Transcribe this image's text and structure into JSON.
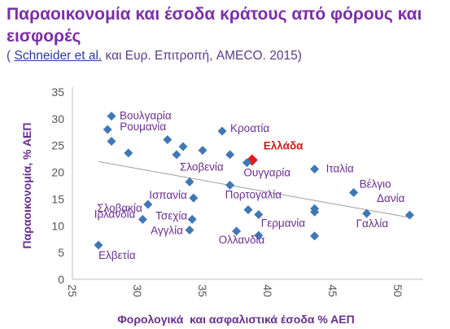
{
  "title": "Παραοικονομία και έσοδα κράτους από φόρους και εισφορές",
  "source": {
    "open": "(",
    "link_text": "Schneider et al.",
    "rest": " και Ευρ. Επιτροπή, AMECO. 2015)"
  },
  "colors": {
    "title": "#7b2fa8",
    "points": "#3f78b5",
    "highlight": "#dd1c1c",
    "labels": "#6a2e8f",
    "trend": "#9e9e9e"
  },
  "chart_data": {
    "type": "scatter",
    "xlabel": "Φορολογικά  και ασφαλιστικά έσοδα % ΑΕΠ",
    "ylabel": "Παραοικονομία, % ΑΕΠ",
    "xlim": [
      25,
      52
    ],
    "ylim": [
      0,
      35
    ],
    "xticks": [
      25,
      30,
      35,
      40,
      45,
      50
    ],
    "yticks": [
      0,
      5,
      10,
      15,
      20,
      25,
      30,
      35
    ],
    "grid": false,
    "trendline": {
      "x": [
        27,
        51
      ],
      "y": [
        22,
        11.5
      ]
    },
    "points": [
      {
        "label": "Βουλγαρία",
        "x": 28.0,
        "y": 30.5
      },
      {
        "label": "Ρουμανία",
        "x": 27.7,
        "y": 28.0
      },
      {
        "label": "",
        "x": 28.0,
        "y": 25.8
      },
      {
        "label": "",
        "x": 29.3,
        "y": 23.6
      },
      {
        "label": "",
        "x": 32.3,
        "y": 26.1
      },
      {
        "label": "",
        "x": 33.0,
        "y": 23.3
      },
      {
        "label": "",
        "x": 33.5,
        "y": 24.8
      },
      {
        "label": "",
        "x": 35.0,
        "y": 24.1
      },
      {
        "label": "Κροατία",
        "x": 36.5,
        "y": 27.7
      },
      {
        "label": "",
        "x": 37.1,
        "y": 23.3
      },
      {
        "label": "Ελλάδα",
        "x": 38.8,
        "y": 22.3,
        "highlight": true
      },
      {
        "label": "Ουγγαρία",
        "x": 38.4,
        "y": 21.8
      },
      {
        "label": "Ιταλία",
        "x": 43.6,
        "y": 20.6
      },
      {
        "label": "Σλοβενία",
        "x": 34.0,
        "y": 18.2
      },
      {
        "label": "Πορτογαλία",
        "x": 37.1,
        "y": 17.6
      },
      {
        "label": "Βέλγιο",
        "x": 46.6,
        "y": 16.2
      },
      {
        "label": "Δανία",
        "x": 50.9,
        "y": 12.0
      },
      {
        "label": "Ισπανία",
        "x": 34.3,
        "y": 15.2
      },
      {
        "label": "Σλοβακία",
        "x": 30.8,
        "y": 14.0
      },
      {
        "label": "Τσεχία",
        "x": 34.2,
        "y": 11.2
      },
      {
        "label": "Ιρλανδία",
        "x": 30.4,
        "y": 11.2
      },
      {
        "label": "Αγγλία",
        "x": 34.0,
        "y": 9.2
      },
      {
        "label": "",
        "x": 38.5,
        "y": 13.0
      },
      {
        "label": "Γερμανία",
        "x": 39.3,
        "y": 12.1
      },
      {
        "label": "",
        "x": 43.6,
        "y": 12.6
      },
      {
        "label": "",
        "x": 43.6,
        "y": 13.2
      },
      {
        "label": "Γαλλία",
        "x": 47.6,
        "y": 12.3
      },
      {
        "label": "Ολλανδία",
        "x": 37.6,
        "y": 9.0
      },
      {
        "label": "",
        "x": 39.3,
        "y": 8.2
      },
      {
        "label": "",
        "x": 43.6,
        "y": 8.1
      },
      {
        "label": "Ελβετία",
        "x": 27.0,
        "y": 6.4
      }
    ]
  }
}
